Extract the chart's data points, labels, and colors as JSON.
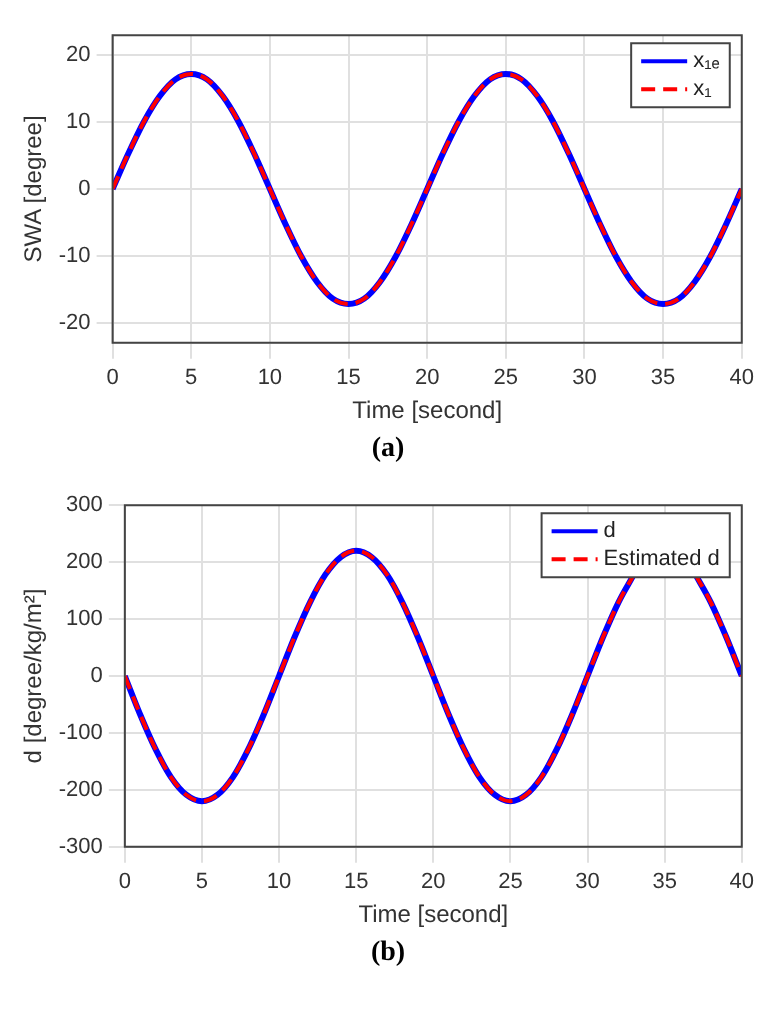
{
  "chart_data": [
    {
      "type": "line",
      "xlabel": "Time [second]",
      "ylabel": "SWA [degree]",
      "annotations": [
        "(a)"
      ],
      "x": [
        0,
        1,
        2,
        3,
        4,
        5,
        6,
        7,
        8,
        9,
        10,
        11,
        12,
        13,
        14,
        15,
        16,
        17,
        18,
        19,
        20,
        21,
        22,
        23,
        24,
        25,
        26,
        27,
        28,
        29,
        30,
        31,
        32,
        33,
        34,
        35,
        36,
        37,
        38,
        39,
        40
      ],
      "xlim": [
        0,
        40
      ],
      "xticks": [
        0,
        5,
        10,
        15,
        20,
        25,
        30,
        35,
        40
      ],
      "ylim": [
        -23,
        23
      ],
      "yticks": [
        -20,
        -10,
        0,
        10,
        20
      ],
      "grid": true,
      "legend": "top right",
      "marker": "none",
      "series": [
        {
          "name": "x₁ₑ",
          "color": "#0000ff",
          "line_style": "solid",
          "values": [
            0,
            5.3,
            10.1,
            13.9,
            16.4,
            17.2,
            16.4,
            13.9,
            10.1,
            5.3,
            0,
            -5.3,
            -10.1,
            -13.9,
            -16.4,
            -17.2,
            -16.4,
            -13.9,
            -10.1,
            -5.3,
            0,
            5.3,
            10.1,
            13.9,
            16.4,
            17.2,
            16.4,
            13.9,
            10.1,
            5.3,
            0,
            -5.3,
            -10.1,
            -13.9,
            -16.4,
            -17.2,
            -16.4,
            -13.9,
            -10.1,
            -5.3,
            0
          ]
        },
        {
          "name": "x₁",
          "color": "#ff0000",
          "line_style": "dashed",
          "values": [
            0,
            5.3,
            10.1,
            13.9,
            16.4,
            17.2,
            16.4,
            13.9,
            10.1,
            5.3,
            0,
            -5.3,
            -10.1,
            -13.9,
            -16.4,
            -17.2,
            -16.4,
            -13.9,
            -10.1,
            -5.3,
            0,
            5.3,
            10.1,
            13.9,
            16.4,
            17.2,
            16.4,
            13.9,
            10.1,
            5.3,
            0,
            -5.3,
            -10.1,
            -13.9,
            -16.4,
            -17.2,
            -16.4,
            -13.9,
            -10.1,
            -5.3,
            0
          ]
        }
      ]
    },
    {
      "type": "line",
      "xlabel": "Time [second]",
      "ylabel": "d [degree/kg/m²]",
      "annotations": [
        "(b)"
      ],
      "x": [
        0,
        1,
        2,
        3,
        4,
        5,
        6,
        7,
        8,
        9,
        10,
        11,
        12,
        13,
        14,
        15,
        16,
        17,
        18,
        19,
        20,
        21,
        22,
        23,
        24,
        25,
        26,
        27,
        28,
        29,
        30,
        31,
        32,
        33,
        34,
        35,
        36,
        37,
        38,
        39,
        40
      ],
      "xlim": [
        0,
        40
      ],
      "xticks": [
        0,
        5,
        10,
        15,
        20,
        25,
        30,
        35,
        40
      ],
      "ylim": [
        -300,
        300
      ],
      "yticks": [
        -300,
        -200,
        -100,
        0,
        100,
        200,
        300
      ],
      "grid": true,
      "legend": "top right",
      "marker": "none",
      "series": [
        {
          "name": "d",
          "color": "#0000ff",
          "line_style": "solid",
          "values": [
            0,
            -68,
            -129,
            -178,
            -209,
            -220,
            -209,
            -178,
            -129,
            -68,
            0,
            68,
            129,
            178,
            209,
            220,
            209,
            178,
            129,
            68,
            0,
            -68,
            -129,
            -178,
            -209,
            -220,
            -209,
            -178,
            -129,
            -68,
            0,
            68,
            129,
            178,
            null,
            null,
            null,
            178,
            129,
            68,
            0
          ]
        },
        {
          "name": "Estimated d",
          "color": "#ff0000",
          "line_style": "dashed",
          "values": [
            0,
            -68,
            -129,
            -178,
            -209,
            -220,
            -209,
            -178,
            -129,
            -68,
            0,
            68,
            129,
            178,
            209,
            220,
            209,
            178,
            129,
            68,
            0,
            -68,
            -129,
            -178,
            -209,
            -220,
            -209,
            -178,
            -129,
            -68,
            0,
            68,
            129,
            178,
            null,
            null,
            null,
            178,
            129,
            68,
            0
          ]
        }
      ]
    }
  ]
}
